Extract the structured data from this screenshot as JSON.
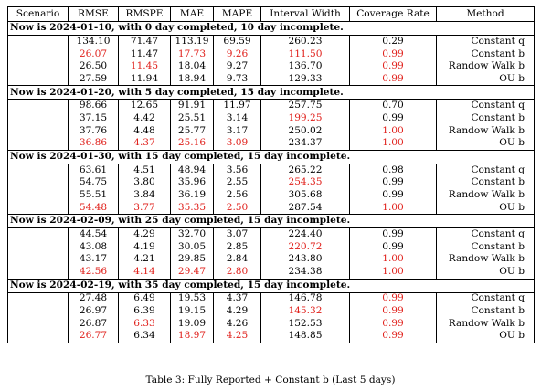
{
  "headers": [
    "Scenario",
    "RMSE",
    "RMSPE",
    "MAE",
    "MAPE",
    "Interval Width",
    "Coverage Rate",
    "Method"
  ],
  "sections": [
    {
      "title": "Now is 2024-01-10, with 0 day completed, 10 day incomplete.",
      "rows": [
        {
          "v": [
            "134.10",
            "71.47",
            "113.19",
            "69.59",
            "260.23",
            "0.29"
          ],
          "red": [
            false,
            false,
            false,
            false,
            false,
            false
          ],
          "method": "Constant q"
        },
        {
          "v": [
            "26.07",
            "11.47",
            "17.73",
            "9.26",
            "111.50",
            "0.99"
          ],
          "red": [
            true,
            false,
            true,
            true,
            true,
            true
          ],
          "method": "Constant b"
        },
        {
          "v": [
            "26.50",
            "11.45",
            "18.04",
            "9.27",
            "136.70",
            "0.99"
          ],
          "red": [
            false,
            true,
            false,
            false,
            false,
            true
          ],
          "method": "Randow Walk b"
        },
        {
          "v": [
            "27.59",
            "11.94",
            "18.94",
            "9.73",
            "129.33",
            "0.99"
          ],
          "red": [
            false,
            false,
            false,
            false,
            false,
            true
          ],
          "method": "OU b"
        }
      ]
    },
    {
      "title": "Now is 2024-01-20, with 5 day completed, 15 day incomplete.",
      "rows": [
        {
          "v": [
            "98.66",
            "12.65",
            "91.91",
            "11.97",
            "257.75",
            "0.70"
          ],
          "red": [
            false,
            false,
            false,
            false,
            false,
            false
          ],
          "method": "Constant q"
        },
        {
          "v": [
            "37.15",
            "4.42",
            "25.51",
            "3.14",
            "199.25",
            "0.99"
          ],
          "red": [
            false,
            false,
            false,
            false,
            true,
            false
          ],
          "method": "Constant b"
        },
        {
          "v": [
            "37.76",
            "4.48",
            "25.77",
            "3.17",
            "250.02",
            "1.00"
          ],
          "red": [
            false,
            false,
            false,
            false,
            false,
            true
          ],
          "method": "Randow Walk b"
        },
        {
          "v": [
            "36.86",
            "4.37",
            "25.16",
            "3.09",
            "234.37",
            "1.00"
          ],
          "red": [
            true,
            true,
            true,
            true,
            false,
            true
          ],
          "method": "OU b"
        }
      ]
    },
    {
      "title": "Now is 2024-01-30, with 15 day completed, 15 day incomplete.",
      "rows": [
        {
          "v": [
            "63.61",
            "4.51",
            "48.94",
            "3.56",
            "265.22",
            "0.98"
          ],
          "red": [
            false,
            false,
            false,
            false,
            false,
            false
          ],
          "method": "Constant q"
        },
        {
          "v": [
            "54.75",
            "3.80",
            "35.96",
            "2.55",
            "254.35",
            "0.99"
          ],
          "red": [
            false,
            false,
            false,
            false,
            true,
            false
          ],
          "method": "Constant b"
        },
        {
          "v": [
            "55.51",
            "3.84",
            "36.19",
            "2.56",
            "305.68",
            "0.99"
          ],
          "red": [
            false,
            false,
            false,
            false,
            false,
            false
          ],
          "method": "Randow Walk b"
        },
        {
          "v": [
            "54.48",
            "3.77",
            "35.35",
            "2.50",
            "287.54",
            "1.00"
          ],
          "red": [
            true,
            true,
            true,
            true,
            false,
            true
          ],
          "method": "OU b"
        }
      ]
    },
    {
      "title": "Now is 2024-02-09, with 25 day completed, 15 day incomplete.",
      "rows": [
        {
          "v": [
            "44.54",
            "4.29",
            "32.70",
            "3.07",
            "224.40",
            "0.99"
          ],
          "red": [
            false,
            false,
            false,
            false,
            false,
            false
          ],
          "method": "Constant q"
        },
        {
          "v": [
            "43.08",
            "4.19",
            "30.05",
            "2.85",
            "220.72",
            "0.99"
          ],
          "red": [
            false,
            false,
            false,
            false,
            true,
            false
          ],
          "method": "Constant b"
        },
        {
          "v": [
            "43.17",
            "4.21",
            "29.85",
            "2.84",
            "243.80",
            "1.00"
          ],
          "red": [
            false,
            false,
            false,
            false,
            false,
            true
          ],
          "method": "Randow Walk b"
        },
        {
          "v": [
            "42.56",
            "4.14",
            "29.47",
            "2.80",
            "234.38",
            "1.00"
          ],
          "red": [
            true,
            true,
            true,
            true,
            false,
            true
          ],
          "method": "OU b"
        }
      ]
    },
    {
      "title": "Now is 2024-02-19, with 35 day completed, 15 day incomplete.",
      "rows": [
        {
          "v": [
            "27.48",
            "6.49",
            "19.53",
            "4.37",
            "146.78",
            "0.99"
          ],
          "red": [
            false,
            false,
            false,
            false,
            false,
            true
          ],
          "method": "Constant q"
        },
        {
          "v": [
            "26.97",
            "6.39",
            "19.15",
            "4.29",
            "145.32",
            "0.99"
          ],
          "red": [
            false,
            false,
            false,
            false,
            true,
            true
          ],
          "method": "Constant b"
        },
        {
          "v": [
            "26.87",
            "6.33",
            "19.09",
            "4.26",
            "152.53",
            "0.99"
          ],
          "red": [
            false,
            true,
            false,
            false,
            false,
            true
          ],
          "method": "Randow Walk b"
        },
        {
          "v": [
            "26.77",
            "6.34",
            "18.97",
            "4.25",
            "148.85",
            "0.99"
          ],
          "red": [
            true,
            false,
            true,
            true,
            false,
            true
          ],
          "method": "OU b"
        }
      ]
    }
  ],
  "caption": "Table 3: Fully Reported + Constant b (Last 5 days)",
  "colors": {
    "highlight": "#e0201b",
    "text": "#000000"
  }
}
